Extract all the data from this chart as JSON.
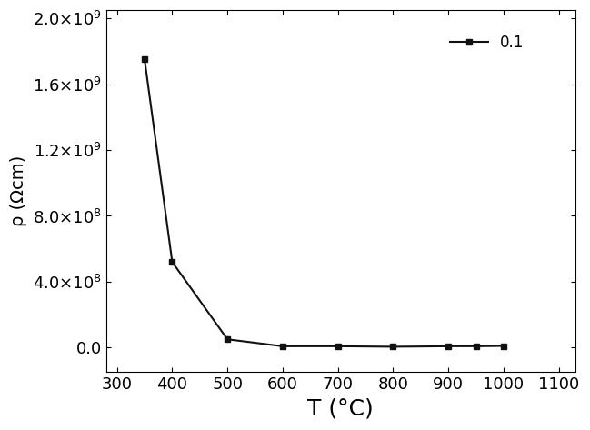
{
  "x": [
    350,
    400,
    500,
    600,
    700,
    800,
    900,
    950,
    1000
  ],
  "y": [
    1750000000.0,
    520000000.0,
    50000000.0,
    8000000.0,
    8000000.0,
    5000000.0,
    8000000.0,
    8000000.0,
    10000000.0
  ],
  "xlabel": "T (°C)",
  "ylabel": "ρ (Ωcm)",
  "xlim": [
    280,
    1130
  ],
  "ylim": [
    -150000000.0,
    2050000000.0
  ],
  "xticks": [
    300,
    400,
    500,
    600,
    700,
    800,
    900,
    1000,
    1100
  ],
  "yticks": [
    0.0,
    400000000.0,
    800000000.0,
    1200000000.0,
    1600000000.0,
    2000000000.0
  ],
  "legend_label": "0.1",
  "line_color": "#111111",
  "marker": "s",
  "markersize": 5,
  "linewidth": 1.5,
  "background_color": "#ffffff",
  "xlabel_fontsize": 18,
  "ylabel_fontsize": 14,
  "tick_fontsize": 13
}
